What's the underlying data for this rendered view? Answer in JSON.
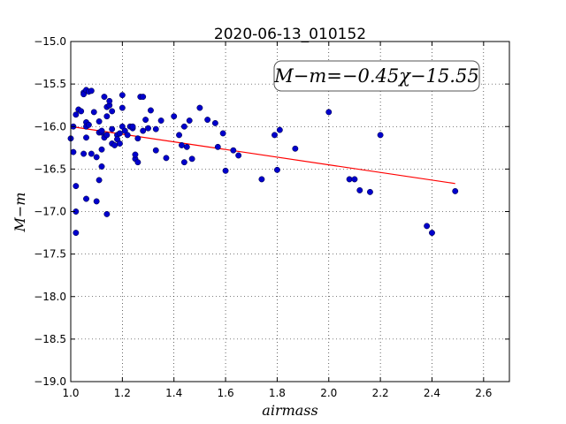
{
  "chart_data": {
    "type": "scatter",
    "title": "2020-06-13_010152",
    "xlabel": "airmass",
    "ylabel": "M−m",
    "annotation": "M−m=−0.45χ−15.55",
    "xlim": [
      1.0,
      2.7
    ],
    "ylim": [
      -19.0,
      -15.0
    ],
    "xticks": [
      1.0,
      1.2,
      1.4,
      1.6,
      1.8,
      2.0,
      2.2,
      2.4,
      2.6
    ],
    "xtick_labels": [
      "1.0",
      "1.2",
      "1.4",
      "1.6",
      "1.8",
      "2.0",
      "2.2",
      "2.4",
      "2.6"
    ],
    "yticks": [
      -15.0,
      -15.5,
      -16.0,
      -16.5,
      -17.0,
      -17.5,
      -18.0,
      -18.5,
      -19.0
    ],
    "ytick_labels": [
      "−15.0",
      "−15.5",
      "−16.0",
      "−16.5",
      "−17.0",
      "−17.5",
      "−18.0",
      "−18.5",
      "−19.0"
    ],
    "grid": true,
    "fit": {
      "slope": -0.45,
      "intercept": -15.55,
      "x_range": [
        1.0,
        2.49
      ],
      "color": "#ff0000"
    },
    "marker_color": "#0000cc",
    "x": [
      1.0,
      1.01,
      1.01,
      1.02,
      1.02,
      1.02,
      1.02,
      1.03,
      1.04,
      1.05,
      1.05,
      1.05,
      1.06,
      1.06,
      1.06,
      1.06,
      1.06,
      1.07,
      1.07,
      1.08,
      1.08,
      1.09,
      1.1,
      1.1,
      1.11,
      1.11,
      1.11,
      1.12,
      1.12,
      1.12,
      1.12,
      1.13,
      1.13,
      1.14,
      1.14,
      1.14,
      1.14,
      1.15,
      1.15,
      1.16,
      1.16,
      1.16,
      1.17,
      1.18,
      1.18,
      1.19,
      1.19,
      1.2,
      1.2,
      1.2,
      1.21,
      1.22,
      1.23,
      1.24,
      1.24,
      1.25,
      1.25,
      1.26,
      1.26,
      1.27,
      1.28,
      1.28,
      1.29,
      1.3,
      1.31,
      1.33,
      1.33,
      1.35,
      1.37,
      1.4,
      1.42,
      1.43,
      1.44,
      1.44,
      1.45,
      1.46,
      1.47,
      1.5,
      1.53,
      1.56,
      1.57,
      1.59,
      1.6,
      1.63,
      1.65,
      1.74,
      1.79,
      1.8,
      1.81,
      1.87,
      2.0,
      2.08,
      2.1,
      2.12,
      2.16,
      2.2,
      2.38,
      2.4,
      2.49
    ],
    "y": [
      -16.14,
      -16.3,
      -16.0,
      -17.0,
      -16.7,
      -15.86,
      -17.25,
      -15.8,
      -15.82,
      -15.6,
      -15.62,
      -16.32,
      -15.57,
      -15.95,
      -16.0,
      -16.85,
      -16.13,
      -15.98,
      -15.59,
      -16.32,
      -15.58,
      -15.83,
      -16.88,
      -16.36,
      -16.63,
      -16.07,
      -15.94,
      -16.47,
      -16.27,
      -16.07,
      -16.05,
      -16.13,
      -15.65,
      -16.1,
      -15.77,
      -17.03,
      -15.88,
      -15.75,
      -15.7,
      -15.82,
      -16.03,
      -16.2,
      -16.22,
      -16.1,
      -16.15,
      -16.2,
      -16.08,
      -15.63,
      -15.78,
      -16.0,
      -16.05,
      -16.1,
      -16.0,
      -16.02,
      -16.0,
      -16.38,
      -16.33,
      -16.42,
      -16.14,
      -15.65,
      -16.05,
      -15.65,
      -15.92,
      -16.02,
      -15.81,
      -16.28,
      -16.03,
      -15.93,
      -16.37,
      -15.88,
      -16.1,
      -16.22,
      -16.0,
      -16.42,
      -16.24,
      -15.93,
      -16.38,
      -15.78,
      -15.92,
      -15.96,
      -16.24,
      -16.08,
      -16.52,
      -16.28,
      -16.34,
      -16.62,
      -16.1,
      -16.51,
      -16.04,
      -16.26,
      -15.83,
      -16.62,
      -16.62,
      -16.75,
      -16.77,
      -16.1,
      -17.17,
      -17.25,
      -16.76
    ]
  }
}
